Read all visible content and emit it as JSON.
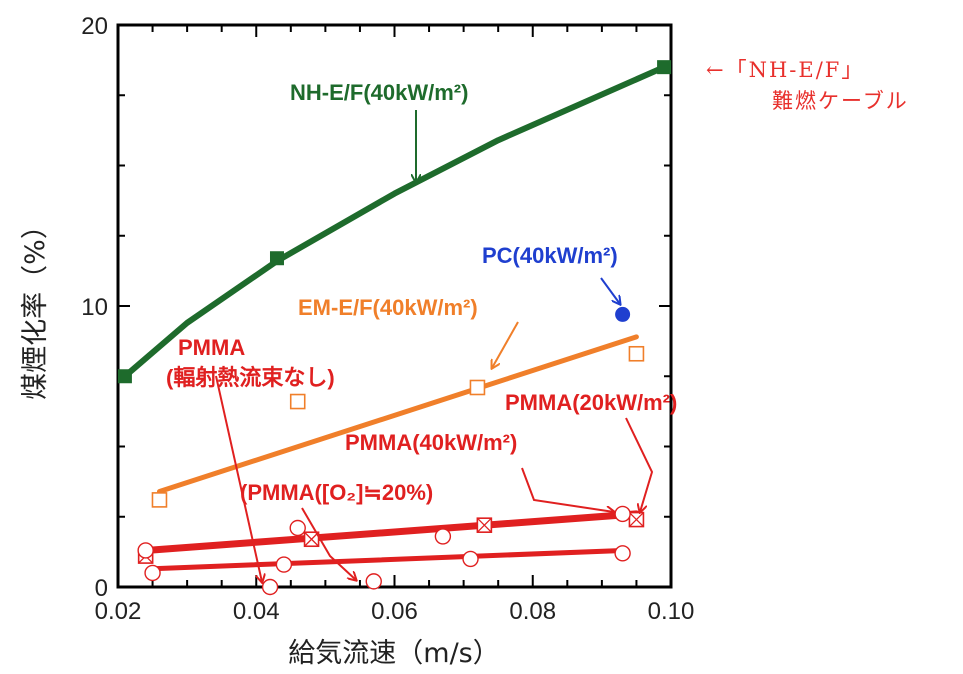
{
  "side_note": {
    "line1": "←「NH-E/F」",
    "line2": "難燃ケーブル"
  },
  "chart_data": {
    "type": "scatter",
    "title": "",
    "xlabel": "給気流速（m/s）",
    "ylabel": "煤煙化率（%）",
    "xlim": [
      0.02,
      0.1
    ],
    "ylim": [
      0,
      20
    ],
    "xticks": [
      "0.02",
      "0.04",
      "0.06",
      "0.08",
      "0.10"
    ],
    "yticks": [
      "0",
      "10",
      "20"
    ],
    "grid": false,
    "series": [
      {
        "name": "NH-E/F(40kW/m2)",
        "color": "#1e6b2c",
        "marker": "filled-square",
        "points": [
          [
            0.021,
            7.5
          ],
          [
            0.043,
            11.7
          ],
          [
            0.099,
            18.5
          ]
        ],
        "fit": [
          [
            0.021,
            7.5
          ],
          [
            0.03,
            9.4
          ],
          [
            0.043,
            11.6
          ],
          [
            0.06,
            14.0
          ],
          [
            0.075,
            15.9
          ],
          [
            0.099,
            18.5
          ]
        ]
      },
      {
        "name": "PC(40kW/m2)",
        "color": "#1f3fcf",
        "marker": "filled-circle",
        "points": [
          [
            0.093,
            9.7
          ]
        ]
      },
      {
        "name": "EM-E/F(40kW/m2)",
        "color": "#f07f2a",
        "marker": "open-square",
        "points": [
          [
            0.026,
            3.1
          ],
          [
            0.046,
            6.6
          ],
          [
            0.072,
            7.1
          ],
          [
            0.095,
            8.3
          ]
        ],
        "fit": [
          [
            0.026,
            3.4
          ],
          [
            0.095,
            8.9
          ]
        ]
      },
      {
        "name": "PMMA(20kW/m2)",
        "color": "#e02020",
        "marker": "crossed-square",
        "points": [
          [
            0.024,
            1.1
          ],
          [
            0.048,
            1.7
          ],
          [
            0.073,
            2.2
          ],
          [
            0.095,
            2.4
          ]
        ],
        "fit": [
          [
            0.024,
            1.3
          ],
          [
            0.095,
            2.6
          ]
        ]
      },
      {
        "name": "PMMA(40kW/m2)",
        "color": "#e02020",
        "marker": "open-circle",
        "points": [
          [
            0.024,
            1.3
          ],
          [
            0.046,
            2.1
          ],
          [
            0.067,
            1.8
          ],
          [
            0.093,
            2.6
          ]
        ]
      },
      {
        "name": "PMMA([O2]≒20%)",
        "color": "#e02020",
        "marker": "open-circle",
        "points": [
          [
            0.025,
            0.5
          ],
          [
            0.044,
            0.8
          ],
          [
            0.071,
            1.0
          ],
          [
            0.093,
            1.2
          ]
        ],
        "fit": [
          [
            0.025,
            0.65
          ],
          [
            0.093,
            1.3
          ]
        ]
      },
      {
        "name": "PMMA(輻射熱流束なし)",
        "color": "#e02020",
        "marker": "open-circle",
        "points": [
          [
            0.042,
            0.0
          ],
          [
            0.057,
            0.2
          ]
        ]
      }
    ],
    "annotations": [
      {
        "text": "NH-E/F(40kW/m²)",
        "color": "#1e6b2c",
        "arrow_to": [
          0.064,
          14.5
        ]
      },
      {
        "text": "PC(40kW/m²)",
        "color": "#1f3fcf",
        "arrow_to": [
          0.093,
          9.9
        ]
      },
      {
        "text": "EM-E/F(40kW/m²)",
        "color": "#f07f2a",
        "arrow_to": [
          0.075,
          7.7
        ]
      },
      {
        "text": "PMMA",
        "color": "#e02020",
        "arrow_to": [
          0.042,
          0.0
        ]
      },
      {
        "text": "(輻射熱流束なし)",
        "color": "#e02020"
      },
      {
        "text": "PMMA(20kW/m²)",
        "color": "#e02020",
        "arrow_to": [
          0.095,
          2.5
        ]
      },
      {
        "text": "PMMA(40kW/m²)",
        "color": "#e02020",
        "arrow_to": [
          0.093,
          2.6
        ]
      },
      {
        "text": "(PMMA([O₂]≒20%)",
        "color": "#e02020",
        "arrow_to": [
          0.057,
          0.1
        ]
      }
    ]
  }
}
